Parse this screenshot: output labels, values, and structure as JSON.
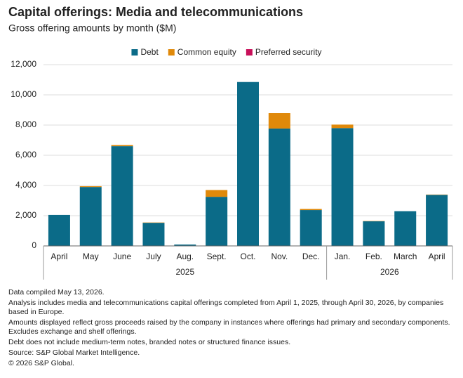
{
  "chart_data": {
    "type": "stacked_bar",
    "title": "Capital offerings: Media and telecommunications",
    "subtitle": "Gross offering amounts by month ($M)",
    "groups": [
      {
        "label": "2025",
        "categories": [
          "April",
          "May",
          "June",
          "July",
          "Aug.",
          "Sept.",
          "Oct.",
          "Nov.",
          "Dec."
        ]
      },
      {
        "label": "2026",
        "categories": [
          "Jan.",
          "Feb.",
          "March",
          "April"
        ]
      }
    ],
    "series": [
      {
        "name": "Debt",
        "color": "#0b6b88",
        "values": [
          2050,
          3900,
          6600,
          1530,
          90,
          3250,
          10850,
          7770,
          2370,
          7800,
          1630,
          2300,
          3380
        ]
      },
      {
        "name": "Common equity",
        "color": "#e0890a",
        "values": [
          0,
          50,
          80,
          20,
          0,
          450,
          0,
          1020,
          80,
          230,
          20,
          0,
          20
        ]
      },
      {
        "name": "Preferred security",
        "color": "#c8105a",
        "values": [
          0,
          0,
          0,
          0,
          0,
          0,
          0,
          0,
          0,
          0,
          0,
          0,
          0
        ]
      }
    ],
    "ylim": [
      0,
      12000
    ],
    "yticks": [
      0,
      {
        "value": 2000,
        "label": "2,000"
      },
      {
        "value": 4000,
        "label": "4,000"
      },
      {
        "value": 6000,
        "label": "6,000"
      },
      {
        "value": 8000,
        "label": "8,000"
      },
      {
        "value": 10000,
        "label": "10,000"
      },
      {
        "value": 12000,
        "label": "12,000"
      }
    ],
    "grid": true,
    "legend": "top",
    "notes": [
      "Data compiled May 13, 2026.",
      "Analysis includes media and telecommunications capital offerings completed from April 1, 2025, through April 30, 2026, by companies based in Europe.",
      "Amounts displayed reflect gross proceeds raised by the company in instances where offerings had primary and secondary components. Excludes exchange and shelf offerings.",
      "Debt does not include medium-term notes, branded notes or structured finance issues.",
      "Source: S&P Global Market Intelligence.",
      "© 2026 S&P Global."
    ]
  }
}
